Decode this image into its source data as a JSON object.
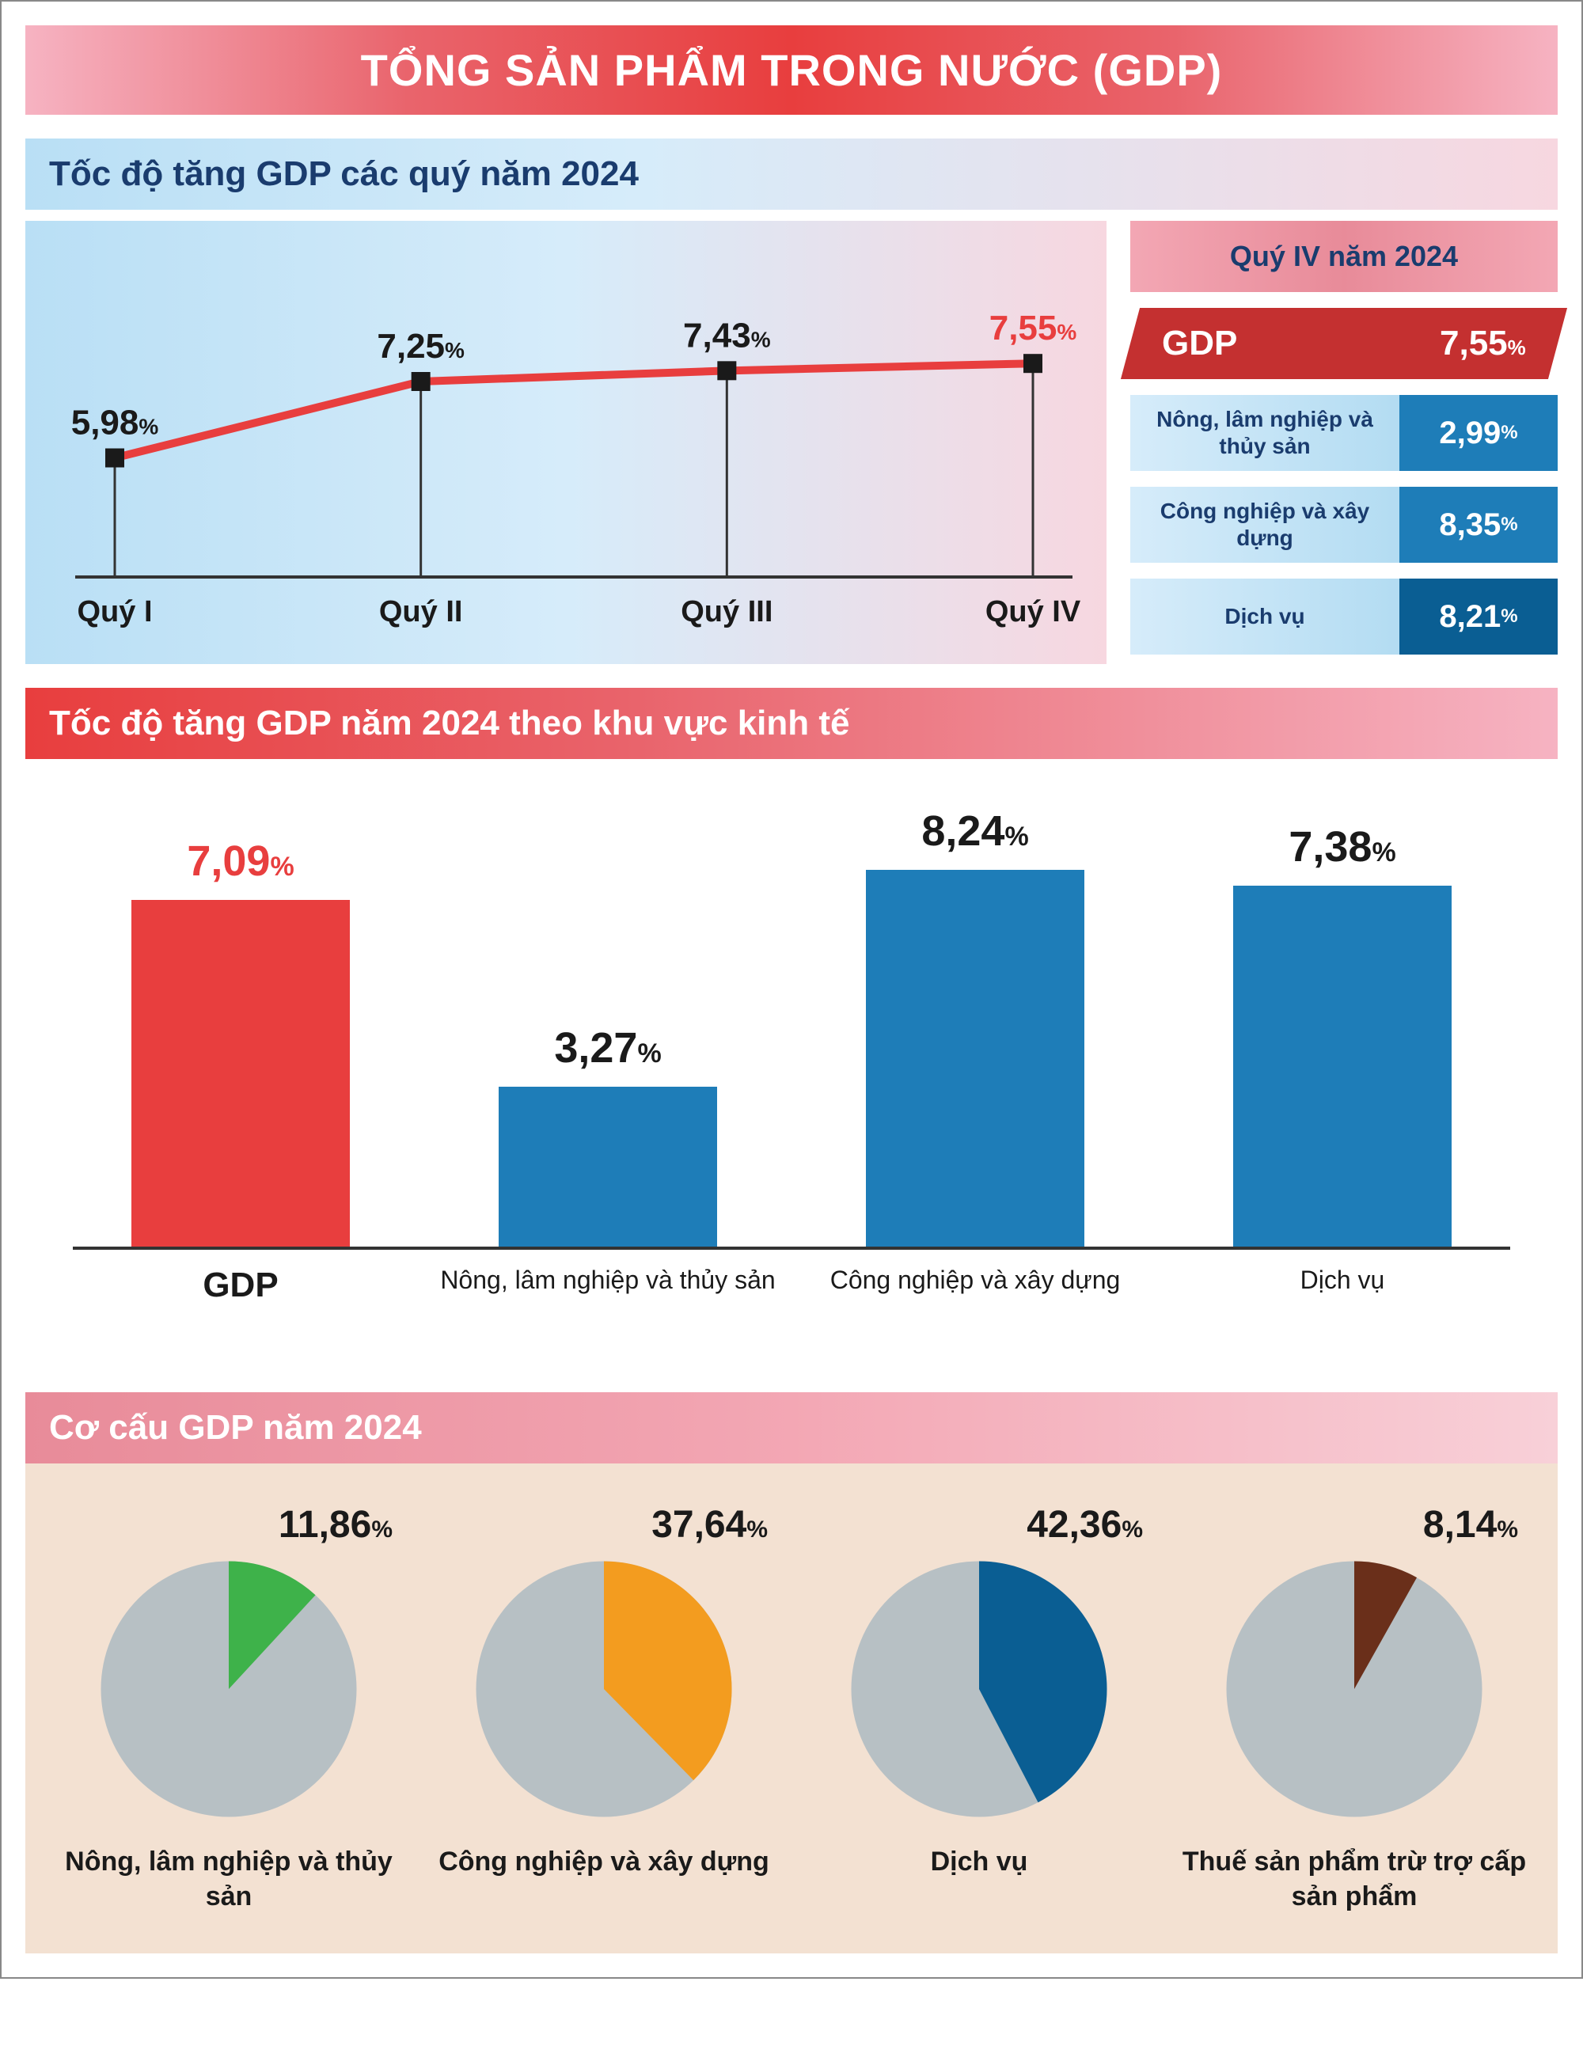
{
  "title": "TỔNG SẢN PHẨM TRONG NƯỚC (GDP)",
  "colors": {
    "red": "#e83e3e",
    "darkRed": "#c43030",
    "blue": "#1e7db8",
    "blueDark": "#0a5e93",
    "grey": "#b7c0c4",
    "navy": "#1a3c6e",
    "green": "#3eb24a",
    "orange": "#f39c1f",
    "brown": "#6a2f1a"
  },
  "section1": {
    "subtitle": "Tốc độ tăng GDP các quý năm 2024",
    "line": {
      "categories": [
        "Quý I",
        "Quý II",
        "Quý III",
        "Quý IV"
      ],
      "values": [
        5.98,
        7.25,
        7.43,
        7.55
      ],
      "labels": [
        "5,98",
        "7,25",
        "7,43",
        "7,55"
      ],
      "lineColor": "#e83e3e",
      "markerColor": "#1a1a1a",
      "lastLabelColor": "#e83e3e",
      "labelColor": "#1a1a1a",
      "axisColor": "#333333",
      "ymin": 4.0,
      "ymax": 9.0
    },
    "side": {
      "title": "Quý IV năm 2024",
      "gdp": {
        "label": "GDP",
        "value": "7,55"
      },
      "items": [
        {
          "label": "Nông, lâm nghiệp và thủy sản",
          "value": "2,99",
          "color": "#1e7db8"
        },
        {
          "label": "Công nghiệp và xây dựng",
          "value": "8,35",
          "color": "#1e7db8"
        },
        {
          "label": "Dịch vụ",
          "value": "8,21",
          "color": "#0a5e93"
        }
      ]
    }
  },
  "section2": {
    "title": "Tốc độ tăng GDP năm 2024 theo khu vực kinh tế",
    "ymax": 9.0,
    "bars": [
      {
        "label": "GDP",
        "value": 7.09,
        "display": "7,09",
        "color": "#e83e3e",
        "valColor": "#e83e3e",
        "bold": true
      },
      {
        "label": "Nông, lâm nghiệp và thủy sản",
        "value": 3.27,
        "display": "3,27",
        "color": "#1e7db8",
        "valColor": "#1a1a1a",
        "bold": false
      },
      {
        "label": "Công nghiệp và xây dựng",
        "value": 8.24,
        "display": "8,24",
        "color": "#1e7db8",
        "valColor": "#1a1a1a",
        "bold": false
      },
      {
        "label": "Dịch vụ",
        "value": 7.38,
        "display": "7,38",
        "color": "#1e7db8",
        "valColor": "#1a1a1a",
        "bold": false
      }
    ]
  },
  "section3": {
    "title": "Cơ cấu GDP năm 2024",
    "baseColor": "#b7c0c4",
    "pies": [
      {
        "label": "Nông, lâm nghiệp và thủy sản",
        "value": 11.86,
        "display": "11,86",
        "color": "#3eb24a"
      },
      {
        "label": "Công nghiệp và xây dựng",
        "value": 37.64,
        "display": "37,64",
        "color": "#f39c1f"
      },
      {
        "label": "Dịch vụ",
        "value": 42.36,
        "display": "42,36",
        "color": "#0a5e93"
      },
      {
        "label": "Thuế sản phẩm trừ trợ cấp sản phẩm",
        "value": 8.14,
        "display": "8,14",
        "color": "#6a2f1a"
      }
    ]
  }
}
